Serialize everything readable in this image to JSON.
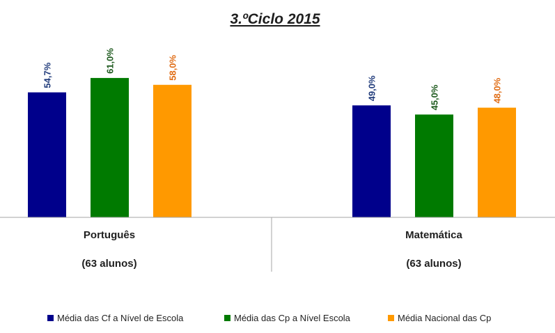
{
  "chart_data": {
    "type": "bar",
    "title": "3.ºCiclo 2015",
    "categories": [
      {
        "name": "Português",
        "sub": "(63 alunos)"
      },
      {
        "name": "Matemática",
        "sub": "(63 alunos)"
      }
    ],
    "series": [
      {
        "name": "Média das Cf a Nível de Escola",
        "color": "#00008b",
        "values": [
          54.7,
          49.0
        ],
        "labels": [
          "54,7%",
          "49,0%"
        ]
      },
      {
        "name": "Média das Cp a Nível Escola",
        "color": "#007a00",
        "values": [
          61.0,
          45.0
        ],
        "labels": [
          "61,0%",
          "45,0%"
        ]
      },
      {
        "name": "Média Nacional das Cp",
        "color": "#ff9900",
        "values": [
          58.0,
          48.0
        ],
        "labels": [
          "58,0%",
          "48,0%"
        ]
      }
    ],
    "label_colors": [
      "#1f3a7a",
      "#1e5a1e",
      "#e06c14"
    ],
    "ylim": [
      0,
      100
    ],
    "grid": false,
    "legend_position": "bottom"
  }
}
